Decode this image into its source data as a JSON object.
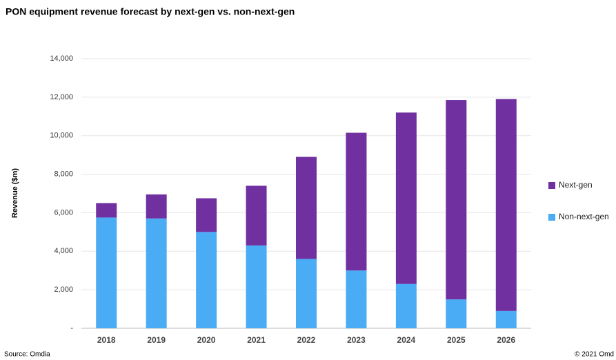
{
  "chart_data": {
    "type": "stacked_bar",
    "title": "PON equipment revenue forecast by next-gen vs. non-next-gen",
    "y_label": "Revenue ($m)",
    "source": "Source: Omdia",
    "copyright": "© 2021 Omd",
    "categories": [
      "2018",
      "2019",
      "2020",
      "2021",
      "2022",
      "2023",
      "2024",
      "2025",
      "2026"
    ],
    "series": [
      {
        "name": "Non-next-gen",
        "color": "#4bacf6",
        "values": [
          5750,
          5700,
          5000,
          4300,
          3600,
          3000,
          2300,
          1500,
          900
        ]
      },
      {
        "name": "Next-gen",
        "color": "#7030a0",
        "values": [
          750,
          1250,
          1750,
          3100,
          5300,
          7150,
          8900,
          10350,
          11000
        ]
      }
    ],
    "ylim": [
      0,
      14000
    ],
    "yticks": [
      {
        "value": 0,
        "label": "-"
      },
      {
        "value": 2000,
        "label": "2,000"
      },
      {
        "value": 4000,
        "label": "4,000"
      },
      {
        "value": 6000,
        "label": "6,000"
      },
      {
        "value": 8000,
        "label": "8,000"
      },
      {
        "value": 10000,
        "label": "10,000"
      },
      {
        "value": 12000,
        "label": "12,000"
      },
      {
        "value": 14000,
        "label": "14,000"
      }
    ],
    "grid": true,
    "legend": "right"
  }
}
